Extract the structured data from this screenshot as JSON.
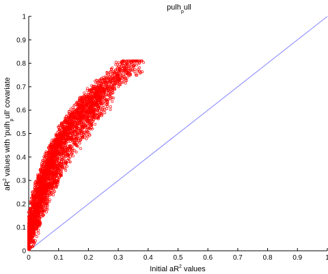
{
  "chart_data": {
    "type": "scatter",
    "title": {
      "main": "pulh",
      "sub": "p",
      "tail": "ull"
    },
    "xlabel": {
      "pre": "Initial aR",
      "sup": "2",
      "post": " values"
    },
    "ylabel": {
      "pre": "aR",
      "sup": "2",
      "mid": " values with 'pulh",
      "sub": "p",
      "post": "ull' covariate"
    },
    "xlim": [
      0,
      1
    ],
    "ylim": [
      0,
      1
    ],
    "xticks": [
      "0",
      "0.1",
      "0.2",
      "0.3",
      "0.4",
      "0.5",
      "0.6",
      "0.7",
      "0.8",
      "0.9",
      "1"
    ],
    "yticks": [
      "0",
      "0.1",
      "0.2",
      "0.3",
      "0.4",
      "0.5",
      "0.6",
      "0.7",
      "0.8",
      "0.9",
      "1"
    ],
    "grid": false,
    "colors": {
      "points": "#ff0000",
      "reference_line": "#8080ff",
      "axes": "#000000"
    },
    "reference_line": {
      "from": [
        0,
        0
      ],
      "to": [
        1,
        1
      ]
    },
    "series": [
      {
        "marker": "open-circle",
        "x": [
          0.001,
          0.002,
          0.003,
          0.004,
          0.005,
          0.006,
          0.008,
          0.01,
          0.012,
          0.014,
          0.016,
          0.018,
          0.02,
          0.022,
          0.024,
          0.026,
          0.028,
          0.03,
          0.032,
          0.034,
          0.036,
          0.038,
          0.04,
          0.042,
          0.044,
          0.046,
          0.048,
          0.05,
          0.052,
          0.055,
          0.058,
          0.06,
          0.062,
          0.065,
          0.068,
          0.07,
          0.072,
          0.075,
          0.078,
          0.08,
          0.083,
          0.086,
          0.09,
          0.093,
          0.096,
          0.1,
          0.103,
          0.106,
          0.11,
          0.113,
          0.116,
          0.12,
          0.124,
          0.128,
          0.132,
          0.136,
          0.14,
          0.145,
          0.15,
          0.155,
          0.16,
          0.165,
          0.17,
          0.175,
          0.18,
          0.185,
          0.19,
          0.195,
          0.2,
          0.205,
          0.21,
          0.215,
          0.22,
          0.225,
          0.23,
          0.235,
          0.24,
          0.245,
          0.25,
          0.255,
          0.26,
          0.265,
          0.27,
          0.275,
          0.28,
          0.285,
          0.29,
          0.295,
          0.3,
          0.305,
          0.31,
          0.315,
          0.32,
          0.325,
          0.33,
          0.335,
          0.34,
          0.35,
          0.36,
          0.37,
          0.01,
          0.015,
          0.02,
          0.025,
          0.03,
          0.035,
          0.04,
          0.045,
          0.05,
          0.055,
          0.06,
          0.065,
          0.07,
          0.075,
          0.08,
          0.085,
          0.09,
          0.095,
          0.1,
          0.11,
          0.12,
          0.13,
          0.14,
          0.15,
          0.16,
          0.17,
          0.18,
          0.19,
          0.2,
          0.21,
          0.22,
          0.23,
          0.24,
          0.25,
          0.26,
          0.27
        ],
        "y": [
          0.02,
          0.04,
          0.05,
          0.07,
          0.08,
          0.09,
          0.11,
          0.12,
          0.13,
          0.14,
          0.15,
          0.16,
          0.18,
          0.19,
          0.2,
          0.21,
          0.22,
          0.23,
          0.24,
          0.25,
          0.26,
          0.27,
          0.28,
          0.28,
          0.29,
          0.3,
          0.31,
          0.31,
          0.32,
          0.33,
          0.34,
          0.35,
          0.35,
          0.36,
          0.37,
          0.38,
          0.38,
          0.39,
          0.4,
          0.41,
          0.41,
          0.42,
          0.43,
          0.44,
          0.45,
          0.45,
          0.46,
          0.47,
          0.48,
          0.49,
          0.49,
          0.5,
          0.51,
          0.52,
          0.53,
          0.53,
          0.54,
          0.55,
          0.56,
          0.57,
          0.58,
          0.58,
          0.59,
          0.6,
          0.61,
          0.61,
          0.62,
          0.63,
          0.63,
          0.64,
          0.65,
          0.65,
          0.66,
          0.67,
          0.67,
          0.68,
          0.69,
          0.69,
          0.7,
          0.7,
          0.71,
          0.71,
          0.72,
          0.72,
          0.73,
          0.74,
          0.74,
          0.75,
          0.75,
          0.76,
          0.76,
          0.77,
          0.77,
          0.77,
          0.78,
          0.78,
          0.79,
          0.79,
          0.8,
          0.8,
          0.06,
          0.09,
          0.11,
          0.13,
          0.15,
          0.17,
          0.19,
          0.21,
          0.22,
          0.24,
          0.25,
          0.27,
          0.28,
          0.29,
          0.31,
          0.32,
          0.33,
          0.34,
          0.36,
          0.38,
          0.4,
          0.42,
          0.44,
          0.46,
          0.48,
          0.5,
          0.52,
          0.53,
          0.55,
          0.57,
          0.58,
          0.6,
          0.61,
          0.63,
          0.64,
          0.66
        ]
      }
    ]
  }
}
